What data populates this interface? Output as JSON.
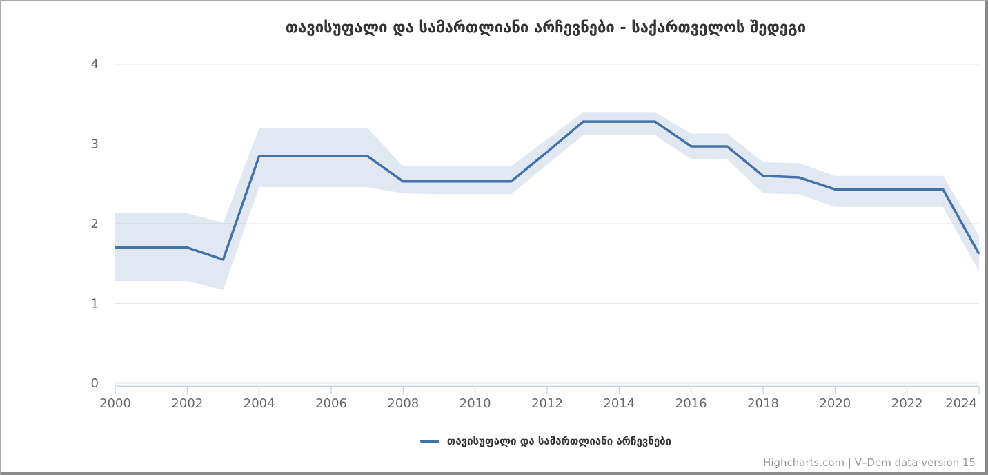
{
  "page": {
    "background": "#ffffff",
    "frame_border_color": "#8a8a8a"
  },
  "chart_data": {
    "type": "line",
    "title": "თავისუფალი და სამართლიანი არჩევნები - საქართველოს შედეგი",
    "x": [
      2000,
      2001,
      2002,
      2003,
      2004,
      2005,
      2006,
      2007,
      2008,
      2009,
      2010,
      2011,
      2012,
      2013,
      2014,
      2015,
      2016,
      2017,
      2018,
      2019,
      2020,
      2021,
      2022,
      2023,
      2024
    ],
    "series": [
      {
        "name": "თავისუფალი და სამართლიანი არჩევნები",
        "type": "line",
        "color": "#4472a8",
        "values": [
          1.7,
          1.7,
          1.7,
          1.55,
          2.85,
          2.85,
          2.85,
          2.85,
          2.53,
          2.53,
          2.53,
          2.53,
          2.9,
          3.28,
          3.28,
          3.28,
          2.97,
          2.97,
          2.6,
          2.58,
          2.43,
          2.43,
          2.43,
          2.43,
          1.62
        ]
      },
      {
        "name": "confidence-interval-band",
        "type": "arearange",
        "color": "rgba(68,114,168,0.16)",
        "high": [
          2.13,
          2.13,
          2.13,
          2.01,
          3.2,
          3.2,
          3.2,
          3.2,
          2.72,
          2.72,
          2.72,
          2.72,
          3.06,
          3.4,
          3.4,
          3.4,
          3.13,
          3.13,
          2.77,
          2.76,
          2.6,
          2.6,
          2.6,
          2.6,
          1.85
        ],
        "low": [
          1.28,
          1.28,
          1.28,
          1.17,
          2.46,
          2.46,
          2.46,
          2.46,
          2.38,
          2.37,
          2.37,
          2.37,
          2.74,
          3.11,
          3.11,
          3.11,
          2.81,
          2.81,
          2.38,
          2.37,
          2.21,
          2.21,
          2.21,
          2.21,
          1.4
        ]
      }
    ],
    "xlabel": "",
    "ylabel": "",
    "xlim": [
      2000,
      2024
    ],
    "ylim": [
      0,
      4
    ],
    "xticks": [
      2000,
      2002,
      2004,
      2006,
      2008,
      2010,
      2012,
      2014,
      2016,
      2018,
      2020,
      2022,
      2024
    ],
    "yticks": [
      0,
      1,
      2,
      3,
      4
    ],
    "grid": "horizontal",
    "grid_color": "#e6e6e6",
    "axis_line_color": "#ccd6eb",
    "axis_label_color": "#666666",
    "legend_position": "bottom-center"
  },
  "legend": {
    "label": "თავისუფალი და სამართლიანი არჩევნები"
  },
  "credits": {
    "text": "Highcharts.com | V–Dem data version 15"
  }
}
